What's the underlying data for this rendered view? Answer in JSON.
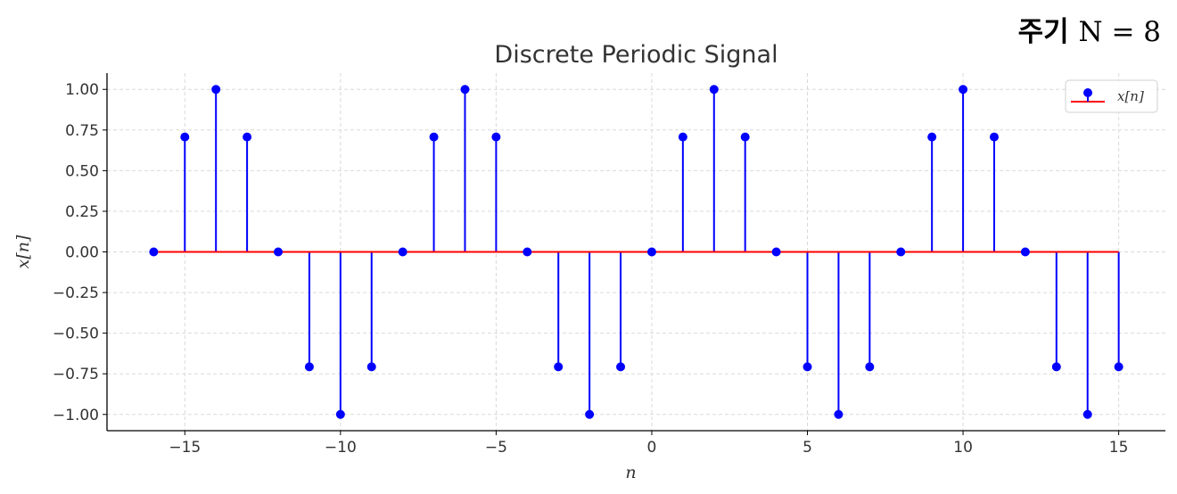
{
  "annotation": {
    "prefix": "주기",
    "math": "N = 8"
  },
  "colors": {
    "stem": "#0000ff",
    "baseline": "#ff0000",
    "grid": "#d9d9d9",
    "text": "#333333"
  },
  "chart_data": {
    "type": "scatter",
    "style": "stem",
    "title": "Discrete Periodic Signal",
    "xlabel": "n",
    "ylabel": "x[n]",
    "xlim": [
      -17.5,
      16.5
    ],
    "ylim": [
      -1.1,
      1.1
    ],
    "xticks": [
      -15,
      -10,
      -5,
      0,
      5,
      10,
      15
    ],
    "xtick_labels": [
      "−15",
      "−10",
      "−5",
      "0",
      "5",
      "10",
      "15"
    ],
    "yticks": [
      1.0,
      0.75,
      0.5,
      0.25,
      0.0,
      -0.25,
      -0.5,
      -0.75,
      -1.0
    ],
    "ytick_labels": [
      "1.00",
      "0.75",
      "0.50",
      "0.25",
      "0.00",
      "−0.25",
      "−0.50",
      "−0.75",
      "−1.00"
    ],
    "grid": true,
    "legend": {
      "placement": "top-right",
      "label": "x[n]"
    },
    "series": [
      {
        "name": "x[n]",
        "x": [
          -16,
          -15,
          -14,
          -13,
          -12,
          -11,
          -10,
          -9,
          -8,
          -7,
          -6,
          -5,
          -4,
          -3,
          -2,
          -1,
          0,
          1,
          2,
          3,
          4,
          5,
          6,
          7,
          8,
          9,
          10,
          11,
          12,
          13,
          14,
          15
        ],
        "y": [
          0,
          0.707,
          1,
          0.707,
          0,
          -0.707,
          -1,
          -0.707,
          0,
          0.707,
          1,
          0.707,
          0,
          -0.707,
          -1,
          -0.707,
          0,
          0.707,
          1,
          0.707,
          0,
          -0.707,
          -1,
          -0.707,
          0,
          0.707,
          1,
          0.707,
          0,
          -0.707,
          -1,
          -0.707
        ]
      }
    ]
  }
}
